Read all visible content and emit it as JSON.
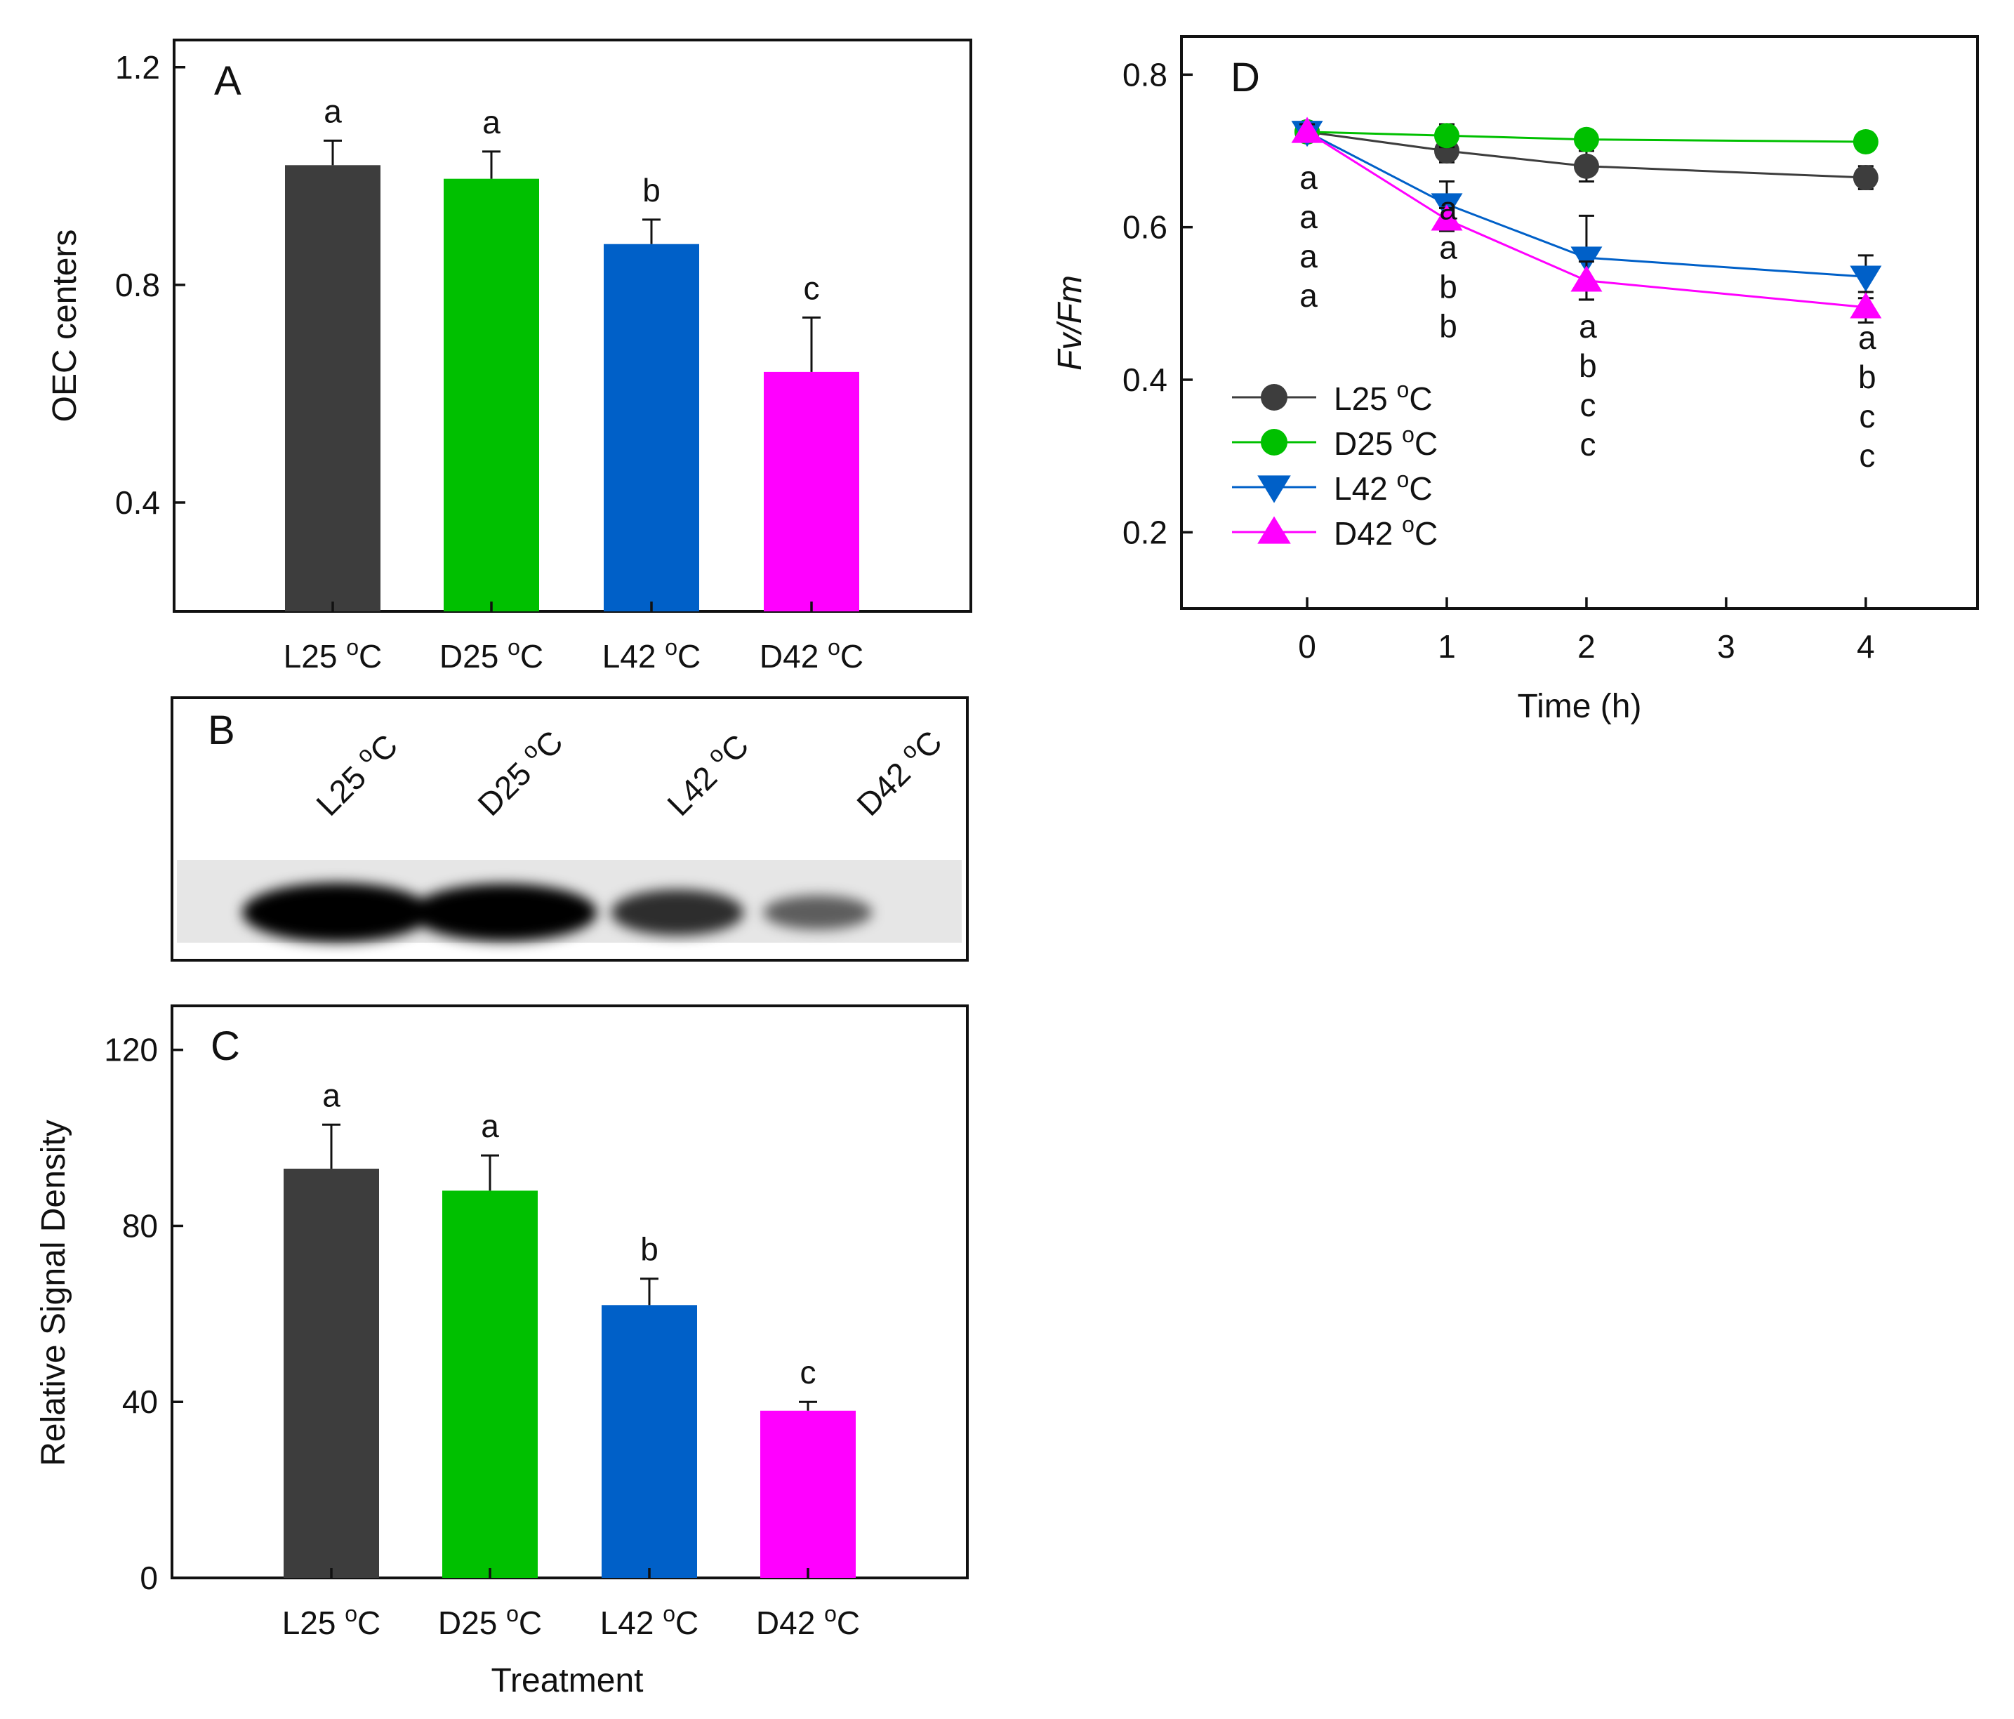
{
  "panels": {
    "A": {
      "letter": "A",
      "chart_data": {
        "type": "bar",
        "categories": [
          "L25 °C",
          "D25 °C",
          "L42 °C",
          "D42 °C"
        ],
        "category_parts": [
          {
            "pre": "L25 ",
            "sup": "o",
            "post": "C"
          },
          {
            "pre": "D25 ",
            "sup": "o",
            "post": "C"
          },
          {
            "pre": "L42 ",
            "sup": "o",
            "post": "C"
          },
          {
            "pre": "D42 ",
            "sup": "o",
            "post": "C"
          }
        ],
        "values": [
          1.02,
          0.995,
          0.875,
          0.64
        ],
        "errors": [
          0.045,
          0.05,
          0.045,
          0.1
        ],
        "significance": [
          "a",
          "a",
          "b",
          "c"
        ],
        "colors": [
          "#3d3d3d",
          "#00c000",
          "#0060c8",
          "#ff00ff"
        ],
        "ylabel": "OEC centers",
        "xlabel": "",
        "ylim": [
          0.2,
          1.25
        ],
        "yticks": [
          0.4,
          0.8,
          1.2
        ],
        "ytick_labels": [
          "0.4",
          "0.8",
          "1.2"
        ],
        "grid": false
      }
    },
    "B": {
      "letter": "B",
      "lanes": [
        {
          "pre": "L25 ",
          "sup": "o",
          "post": "C"
        },
        {
          "pre": "D25 ",
          "sup": "o",
          "post": "C"
        },
        {
          "pre": "L42 ",
          "sup": "o",
          "post": "C"
        },
        {
          "pre": "D42 ",
          "sup": "o",
          "post": "C"
        }
      ],
      "band_intensity": [
        1.0,
        0.95,
        0.65,
        0.35
      ]
    },
    "C": {
      "letter": "C",
      "chart_data": {
        "type": "bar",
        "categories": [
          "L25 °C",
          "D25 °C",
          "L42 °C",
          "D42 °C"
        ],
        "category_parts": [
          {
            "pre": "L25 ",
            "sup": "o",
            "post": "C"
          },
          {
            "pre": "D25 ",
            "sup": "o",
            "post": "C"
          },
          {
            "pre": "L42 ",
            "sup": "o",
            "post": "C"
          },
          {
            "pre": "D42 ",
            "sup": "o",
            "post": "C"
          }
        ],
        "values": [
          93,
          88,
          62,
          38
        ],
        "errors": [
          10,
          8,
          6,
          2
        ],
        "significance": [
          "a",
          "a",
          "b",
          "c"
        ],
        "colors": [
          "#3d3d3d",
          "#00c000",
          "#0060c8",
          "#ff00ff"
        ],
        "ylabel": "Relative Signal Density",
        "xlabel": "Treatment",
        "ylim": [
          0,
          130
        ],
        "yticks": [
          0,
          40,
          80,
          120
        ],
        "ytick_labels": [
          "0",
          "40",
          "80",
          "120"
        ],
        "grid": false
      }
    },
    "D": {
      "letter": "D",
      "chart_data": {
        "type": "line",
        "x": [
          0,
          1,
          2,
          4
        ],
        "xlim": [
          -0.9,
          4.8
        ],
        "xticks": [
          0,
          1,
          2,
          3,
          4
        ],
        "xtick_labels": [
          "0",
          "1",
          "2",
          "3",
          "4"
        ],
        "ylim": [
          0.1,
          0.85
        ],
        "yticks": [
          0.2,
          0.4,
          0.6,
          0.8
        ],
        "ytick_labels": [
          "0.2",
          "0.4",
          "0.6",
          "0.8"
        ],
        "xlabel": "Time (h)",
        "ylabel": "Fv/Fm",
        "grid": false,
        "legend_position": "lower-left",
        "series": [
          {
            "name": "L25 °C",
            "parts": {
              "pre": "L25 ",
              "sup": "o",
              "post": "C"
            },
            "color": "#3d3d3d",
            "marker": "circle",
            "values": [
              0.725,
              0.7,
              0.68,
              0.665
            ],
            "errors": [
              0.01,
              0.015,
              0.02,
              0.015
            ]
          },
          {
            "name": "D25 °C",
            "parts": {
              "pre": "D25 ",
              "sup": "o",
              "post": "C"
            },
            "color": "#00c000",
            "marker": "circle",
            "values": [
              0.725,
              0.72,
              0.715,
              0.712
            ],
            "errors": [
              0.01,
              0.015,
              0.01,
              0.012
            ]
          },
          {
            "name": "L42 °C",
            "parts": {
              "pre": "L42 ",
              "sup": "o",
              "post": "C"
            },
            "color": "#0060c8",
            "marker": "triangle-down",
            "values": [
              0.725,
              0.63,
              0.56,
              0.535
            ],
            "errors": [
              0.01,
              0.03,
              0.055,
              0.028
            ]
          },
          {
            "name": "D42 °C",
            "parts": {
              "pre": "D42 ",
              "sup": "o",
              "post": "C"
            },
            "color": "#ff00ff",
            "marker": "triangle-up",
            "values": [
              0.725,
              0.61,
              0.53,
              0.495
            ],
            "errors": [
              0.01,
              0.015,
              0.025,
              0.02
            ]
          }
        ],
        "significance": [
          {
            "x": 0,
            "letters": [
              "a",
              "a",
              "a",
              "a"
            ]
          },
          {
            "x": 1,
            "letters": [
              "a",
              "a",
              "b",
              "b"
            ]
          },
          {
            "x": 2,
            "letters": [
              "a",
              "b",
              "c",
              "c"
            ]
          },
          {
            "x": 4,
            "letters": [
              "a",
              "b",
              "c",
              "c"
            ]
          }
        ]
      }
    }
  }
}
